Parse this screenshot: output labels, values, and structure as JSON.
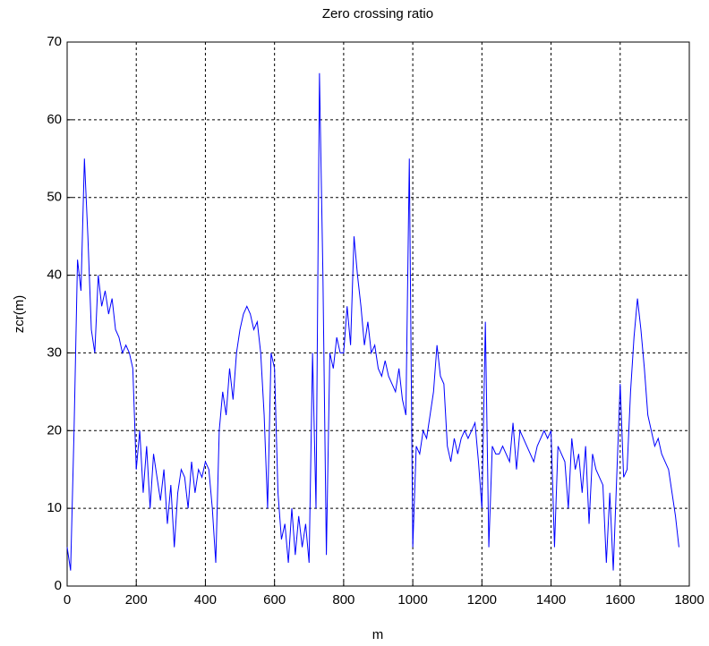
{
  "chart_data": {
    "type": "line",
    "title": "Zero crossing ratio",
    "x_label": "m",
    "y_label": "zcr(m)",
    "x": [
      0,
      10,
      20,
      30,
      40,
      50,
      60,
      70,
      80,
      90,
      100,
      110,
      120,
      130,
      140,
      150,
      160,
      170,
      180,
      190,
      200,
      210,
      220,
      230,
      240,
      250,
      260,
      270,
      280,
      290,
      300,
      310,
      320,
      330,
      340,
      350,
      360,
      370,
      380,
      390,
      400,
      410,
      420,
      430,
      440,
      450,
      460,
      470,
      480,
      490,
      500,
      510,
      520,
      530,
      540,
      550,
      560,
      570,
      580,
      590,
      600,
      610,
      620,
      630,
      640,
      650,
      660,
      670,
      680,
      690,
      700,
      710,
      720,
      730,
      740,
      750,
      760,
      770,
      780,
      790,
      800,
      810,
      820,
      830,
      840,
      850,
      860,
      870,
      880,
      890,
      900,
      910,
      920,
      930,
      940,
      950,
      960,
      970,
      980,
      990,
      1000,
      1010,
      1020,
      1030,
      1040,
      1050,
      1060,
      1070,
      1080,
      1090,
      1100,
      1110,
      1120,
      1130,
      1140,
      1150,
      1160,
      1170,
      1180,
      1190,
      1200,
      1210,
      1220,
      1230,
      1240,
      1250,
      1260,
      1270,
      1280,
      1290,
      1300,
      1310,
      1320,
      1330,
      1340,
      1350,
      1360,
      1370,
      1380,
      1390,
      1400,
      1410,
      1420,
      1430,
      1440,
      1450,
      1460,
      1470,
      1480,
      1490,
      1500,
      1510,
      1520,
      1530,
      1540,
      1550,
      1560,
      1570,
      1580,
      1590,
      1600,
      1610,
      1620,
      1630,
      1640,
      1650,
      1660,
      1670,
      1680,
      1690,
      1700,
      1710,
      1720,
      1730,
      1740,
      1750,
      1760,
      1770
    ],
    "series": [
      {
        "name": "zcr",
        "color": "#0000ff",
        "values": [
          5,
          2,
          20,
          42,
          38,
          55,
          45,
          33,
          30,
          40,
          36,
          38,
          35,
          37,
          33,
          32,
          30,
          31,
          30,
          28,
          15,
          20,
          12,
          18,
          10,
          17,
          14,
          11,
          15,
          8,
          13,
          5,
          12,
          15,
          14,
          10,
          16,
          12,
          15,
          14,
          16,
          15,
          10,
          3,
          20,
          25,
          22,
          28,
          24,
          30,
          33,
          35,
          36,
          35,
          33,
          34,
          30,
          22,
          10,
          30,
          28,
          12,
          6,
          8,
          3,
          10,
          4,
          9,
          5,
          8,
          3,
          30,
          10,
          66,
          40,
          4,
          30,
          28,
          32,
          30,
          30,
          36,
          31,
          45,
          40,
          36,
          31,
          34,
          30,
          31,
          28,
          27,
          29,
          27,
          26,
          25,
          28,
          24,
          22,
          55,
          5,
          18,
          17,
          20,
          19,
          22,
          25,
          31,
          27,
          26,
          18,
          16,
          19,
          17,
          19,
          20,
          19,
          20,
          21,
          16,
          10,
          34,
          5,
          18,
          17,
          17,
          18,
          17,
          16,
          21,
          15,
          20,
          19,
          18,
          17,
          16,
          18,
          19,
          20,
          19,
          20,
          5,
          18,
          17,
          16,
          10,
          19,
          15,
          17,
          12,
          18,
          8,
          17,
          15,
          14,
          13,
          3,
          12,
          2,
          14,
          26,
          14,
          15,
          25,
          32,
          37,
          33,
          28,
          22,
          20,
          18,
          19,
          17,
          16,
          15,
          12,
          9,
          5
        ]
      }
    ],
    "xlim": [
      0,
      1800
    ],
    "ylim": [
      0,
      70
    ],
    "xticks": [
      0,
      200,
      400,
      600,
      800,
      1000,
      1200,
      1400,
      1600,
      1800
    ],
    "yticks": [
      0,
      10,
      20,
      30,
      40,
      50,
      60,
      70
    ],
    "grid": true
  }
}
